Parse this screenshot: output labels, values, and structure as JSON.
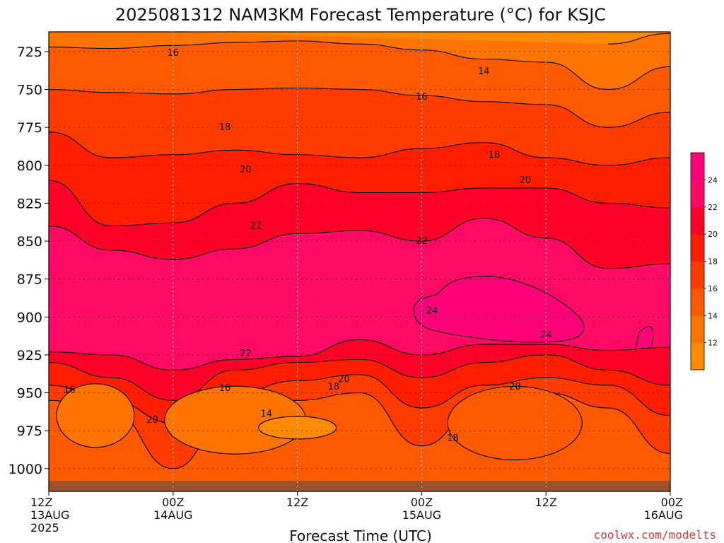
{
  "chart_data": {
    "type": "heatmap",
    "title": "2025081312 NAM3KM Forecast Temperature (°C) for KSJC",
    "xlabel": "Forecast Time (UTC)",
    "ylabel": "",
    "y_axis": {
      "reversed": true,
      "range": [
        712,
        1015
      ],
      "ticks": [
        725,
        750,
        775,
        800,
        825,
        850,
        875,
        900,
        925,
        950,
        975,
        1000
      ]
    },
    "x_axis": {
      "range": [
        0,
        60
      ],
      "tick_hours": [
        0,
        12,
        24,
        36,
        48,
        60
      ],
      "tick_labels": [
        [
          "12Z",
          "13AUG",
          "2025"
        ],
        [
          "00Z",
          "14AUG"
        ],
        [
          "12Z"
        ],
        [
          "00Z",
          "15AUG"
        ],
        [
          "12Z"
        ],
        [
          "00Z",
          "16AUG"
        ]
      ]
    },
    "grid": true,
    "colorbar": {
      "position": "right",
      "levels": [
        10,
        12,
        14,
        16,
        18,
        20,
        22,
        24,
        26
      ],
      "tick_labels": [
        "12",
        "14",
        "16",
        "18",
        "20",
        "22",
        "24"
      ],
      "colors": [
        "#ff8c00",
        "#ff7300",
        "#ff5a00",
        "#ff3c00",
        "#ff1e00",
        "#ff0028",
        "#ff0a64",
        "#ff0078"
      ]
    },
    "ground_color": "#a0522d",
    "isotherm_boundaries": {
      "hours": [
        0,
        6,
        12,
        18,
        24,
        30,
        36,
        42,
        48,
        54,
        60
      ],
      "t12": [
        null,
        null,
        null,
        null,
        null,
        null,
        null,
        null,
        null,
        720,
        713
      ],
      "t14": [
        722,
        723,
        721,
        719,
        718,
        720,
        724,
        730,
        732,
        750,
        735
      ],
      "t16": [
        750,
        752,
        753,
        750,
        749,
        750,
        754,
        758,
        760,
        775,
        765
      ],
      "t18": [
        778,
        795,
        793,
        790,
        793,
        795,
        789,
        785,
        795,
        800,
        795
      ],
      "t20": [
        810,
        840,
        838,
        825,
        812,
        818,
        818,
        815,
        815,
        825,
        828
      ],
      "t22": [
        840,
        856,
        862,
        855,
        845,
        843,
        850,
        835,
        848,
        868,
        865
      ],
      "t22_bottom": [
        923,
        925,
        935,
        928,
        926,
        915,
        925,
        918,
        918,
        922,
        920
      ],
      "t20_bottom": [
        930,
        940,
        955,
        935,
        930,
        928,
        940,
        930,
        925,
        935,
        945
      ],
      "t18_bottom": [
        945,
        955,
        970,
        950,
        942,
        938,
        960,
        945,
        940,
        945,
        965
      ],
      "t16_bottom": [
        955,
        962,
        1000,
        958,
        955,
        950,
        985,
        955,
        950,
        960,
        990
      ]
    },
    "contour_labels": [
      {
        "text": "16",
        "hour": 12.0,
        "p": 726
      },
      {
        "text": "14",
        "hour": 42.0,
        "p": 738
      },
      {
        "text": "16",
        "hour": 36.0,
        "p": 755
      },
      {
        "text": "18",
        "hour": 17.0,
        "p": 775
      },
      {
        "text": "18",
        "hour": 43.0,
        "p": 793
      },
      {
        "text": "20",
        "hour": 19.0,
        "p": 803
      },
      {
        "text": "20",
        "hour": 46.0,
        "p": 810
      },
      {
        "text": "22",
        "hour": 20.0,
        "p": 840
      },
      {
        "text": "22",
        "hour": 36.0,
        "p": 850
      },
      {
        "text": "24",
        "hour": 37.0,
        "p": 896
      },
      {
        "text": "24",
        "hour": 48.0,
        "p": 912
      },
      {
        "text": "22",
        "hour": 19.0,
        "p": 924
      },
      {
        "text": "20",
        "hour": 28.5,
        "p": 941
      },
      {
        "text": "20",
        "hour": 45.0,
        "p": 946
      },
      {
        "text": "18",
        "hour": 27.5,
        "p": 946
      },
      {
        "text": "16",
        "hour": 2.0,
        "p": 948
      },
      {
        "text": "16",
        "hour": 17.0,
        "p": 947
      },
      {
        "text": "14",
        "hour": 21.0,
        "p": 964
      },
      {
        "text": "20",
        "hour": 10.0,
        "p": 968
      },
      {
        "text": "18",
        "hour": 39.0,
        "p": 980
      }
    ]
  },
  "credit": "coolwx.com/modelts"
}
